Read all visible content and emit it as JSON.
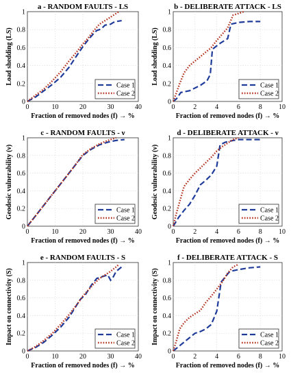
{
  "chart_data": [
    {
      "type": "line",
      "title": "a - RANDOM FAULTS - LS",
      "xlabel": "Fraction of removed nodes (f) → %",
      "ylabel": "Load shedding (LS)",
      "xlim": [
        0,
        40
      ],
      "ylim": [
        0,
        1
      ],
      "xticks": [
        "0",
        "10",
        "20",
        "30",
        "40"
      ],
      "yticks": [
        "0",
        "0.2",
        "0.4",
        "0.6",
        "0.8",
        "1"
      ],
      "legend": [
        "Case 1",
        "Case 2"
      ],
      "legend_position": "bottom-right",
      "grid": true,
      "series": [
        {
          "name": "Case 1",
          "x": [
            0,
            3,
            6,
            9,
            12,
            15,
            18,
            20,
            22,
            24,
            25,
            26,
            27,
            28,
            30,
            31,
            32,
            34
          ],
          "y": [
            0,
            0.05,
            0.12,
            0.19,
            0.27,
            0.38,
            0.52,
            0.61,
            0.69,
            0.76,
            0.79,
            0.8,
            0.82,
            0.85,
            0.86,
            0.88,
            0.89,
            0.9
          ]
        },
        {
          "name": "Case 2",
          "x": [
            0,
            3,
            6,
            9,
            12,
            15,
            18,
            20,
            22,
            24,
            26,
            28,
            30,
            32,
            33
          ],
          "y": [
            0,
            0.07,
            0.14,
            0.23,
            0.33,
            0.45,
            0.56,
            0.64,
            0.71,
            0.79,
            0.86,
            0.9,
            0.94,
            0.98,
            1.0
          ]
        }
      ]
    },
    {
      "type": "line",
      "title": "b - DELIBERATE ATTACK - LS",
      "xlabel": "Fraction of removed nodes (f) → %",
      "ylabel": "Load shedding (LS)",
      "xlim": [
        0,
        10
      ],
      "ylim": [
        0,
        1
      ],
      "xticks": [
        "0",
        "2",
        "4",
        "6",
        "8",
        "10"
      ],
      "yticks": [
        "0",
        "0.2",
        "0.4",
        "0.6",
        "0.8",
        "1"
      ],
      "legend": [
        "Case 1",
        "Case 2"
      ],
      "legend_position": "bottom-right",
      "grid": true,
      "series": [
        {
          "name": "Case 1",
          "x": [
            0,
            0.3,
            0.7,
            1.5,
            2.5,
            3.1,
            3.4,
            3.6,
            4.2,
            5.0,
            5.3,
            6.0,
            7.0,
            8.0
          ],
          "y": [
            0,
            0.03,
            0.1,
            0.12,
            0.18,
            0.23,
            0.3,
            0.58,
            0.64,
            0.7,
            0.86,
            0.88,
            0.89,
            0.89
          ]
        },
        {
          "name": "Case 2",
          "x": [
            0,
            0.3,
            0.6,
            1.0,
            1.5,
            2.0,
            2.5,
            3.0,
            3.5,
            4.0,
            4.5,
            5.0,
            5.5,
            6.0,
            6.5
          ],
          "y": [
            0,
            0.1,
            0.2,
            0.32,
            0.4,
            0.45,
            0.5,
            0.55,
            0.6,
            0.68,
            0.75,
            0.82,
            0.96,
            0.98,
            1.0
          ]
        }
      ]
    },
    {
      "type": "line",
      "title": "c - RANDOM FAULTS - ν",
      "xlabel": "Fraction of removed nodes (f) → %",
      "ylabel": "Geodesic vulnerability (ν)",
      "xlim": [
        0,
        40
      ],
      "ylim": [
        0,
        1
      ],
      "xticks": [
        "0",
        "10",
        "20",
        "30",
        "40"
      ],
      "yticks": [
        "0",
        "0.2",
        "0.4",
        "0.6",
        "0.8",
        "1"
      ],
      "legend": [
        "Case 1",
        "Case 2"
      ],
      "legend_position": "bottom-right",
      "grid": true,
      "series": [
        {
          "name": "Case 1",
          "x": [
            0,
            2,
            5,
            8,
            11,
            14,
            17,
            20,
            23,
            26,
            29,
            32,
            35
          ],
          "y": [
            0,
            0.08,
            0.2,
            0.32,
            0.44,
            0.56,
            0.68,
            0.8,
            0.87,
            0.92,
            0.95,
            0.97,
            0.98
          ]
        },
        {
          "name": "Case 2",
          "x": [
            0,
            2,
            5,
            8,
            11,
            14,
            17,
            20,
            23,
            26,
            29,
            32
          ],
          "y": [
            0,
            0.08,
            0.2,
            0.32,
            0.44,
            0.56,
            0.68,
            0.81,
            0.88,
            0.93,
            0.97,
            1.0
          ]
        }
      ]
    },
    {
      "type": "line",
      "title": "d - DELIBERATE ATTACK - ν",
      "xlabel": "Fraction of removed nodes (f) → %",
      "ylabel": "Geodesic vulnerability (ν)",
      "xlim": [
        0,
        10
      ],
      "ylim": [
        0,
        1
      ],
      "xticks": [
        "0",
        "2",
        "4",
        "6",
        "8",
        "10"
      ],
      "yticks": [
        "0",
        "0.2",
        "0.4",
        "0.6",
        "0.8",
        "1"
      ],
      "legend": [
        "Case 1",
        "Case 2"
      ],
      "legend_position": "bottom-right",
      "grid": true,
      "series": [
        {
          "name": "Case 1",
          "x": [
            0,
            0.5,
            1.0,
            1.5,
            2.0,
            2.5,
            3.0,
            3.5,
            4.0,
            4.3,
            4.8,
            5.5,
            6.0,
            7.0,
            8.0
          ],
          "y": [
            0,
            0.1,
            0.18,
            0.25,
            0.35,
            0.47,
            0.52,
            0.58,
            0.68,
            0.92,
            0.95,
            0.97,
            0.98,
            0.98,
            0.98
          ]
        },
        {
          "name": "Case 2",
          "x": [
            0,
            0.3,
            0.6,
            1.0,
            1.5,
            2.0,
            2.5,
            3.0,
            3.5,
            4.0,
            4.5,
            5.0,
            5.5,
            6.0
          ],
          "y": [
            0,
            0.15,
            0.28,
            0.45,
            0.53,
            0.6,
            0.66,
            0.72,
            0.78,
            0.85,
            0.9,
            0.94,
            0.98,
            1.0
          ]
        }
      ]
    },
    {
      "type": "line",
      "title": "e - RANDOM FAULTS - S",
      "xlabel": "Fraction of removed nodes (f) → %",
      "ylabel": "Impact on connectivity (S)",
      "xlim": [
        0,
        40
      ],
      "ylim": [
        0,
        1
      ],
      "xticks": [
        "0",
        "10",
        "20",
        "30",
        "40"
      ],
      "yticks": [
        "0",
        "0.2",
        "0.4",
        "0.6",
        "0.8",
        "1"
      ],
      "legend": [
        "Case 1",
        "Case 2"
      ],
      "legend_position": "bottom-right",
      "grid": true,
      "series": [
        {
          "name": "Case 1",
          "x": [
            0,
            3,
            6,
            9,
            12,
            15,
            17,
            19,
            21,
            23,
            25,
            27,
            29,
            30,
            31,
            32,
            34
          ],
          "y": [
            0,
            0.04,
            0.1,
            0.18,
            0.27,
            0.38,
            0.48,
            0.58,
            0.64,
            0.74,
            0.82,
            0.84,
            0.86,
            0.8,
            0.84,
            0.9,
            0.95
          ]
        },
        {
          "name": "Case 2",
          "x": [
            0,
            3,
            6,
            9,
            12,
            15,
            18,
            20,
            22,
            24,
            26,
            28,
            30,
            32,
            33
          ],
          "y": [
            0,
            0.05,
            0.12,
            0.2,
            0.3,
            0.41,
            0.53,
            0.62,
            0.69,
            0.76,
            0.82,
            0.86,
            0.9,
            0.95,
            0.98
          ]
        }
      ]
    },
    {
      "type": "line",
      "title": "f - DELIBERATE ATTACK - S",
      "xlabel": "Fraction of removed nodes (f) → %",
      "ylabel": "Impact on connectivity (S)",
      "xlim": [
        0,
        10
      ],
      "ylim": [
        0,
        1
      ],
      "xticks": [
        "0",
        "2",
        "4",
        "6",
        "8",
        "10"
      ],
      "yticks": [
        "0",
        "0.2",
        "0.4",
        "0.6",
        "0.8",
        "1"
      ],
      "legend": [
        "Case 1",
        "Case 2"
      ],
      "legend_position": "bottom-right",
      "grid": true,
      "series": [
        {
          "name": "Case 1",
          "x": [
            0,
            0.5,
            1.0,
            1.5,
            2.0,
            2.5,
            3.0,
            3.5,
            4.0,
            4.4,
            4.8,
            5.2,
            6.0,
            7.0,
            8.0
          ],
          "y": [
            0,
            0.05,
            0.1,
            0.15,
            0.2,
            0.22,
            0.25,
            0.3,
            0.45,
            0.78,
            0.84,
            0.9,
            0.92,
            0.94,
            0.95
          ]
        },
        {
          "name": "Case 2",
          "x": [
            0,
            0.3,
            0.6,
            1.0,
            1.5,
            2.0,
            2.5,
            3.0,
            3.5,
            4.0,
            4.5,
            5.0,
            5.5,
            6.0
          ],
          "y": [
            0,
            0.12,
            0.25,
            0.32,
            0.38,
            0.42,
            0.46,
            0.55,
            0.62,
            0.7,
            0.78,
            0.88,
            0.95,
            0.98
          ]
        }
      ]
    }
  ]
}
